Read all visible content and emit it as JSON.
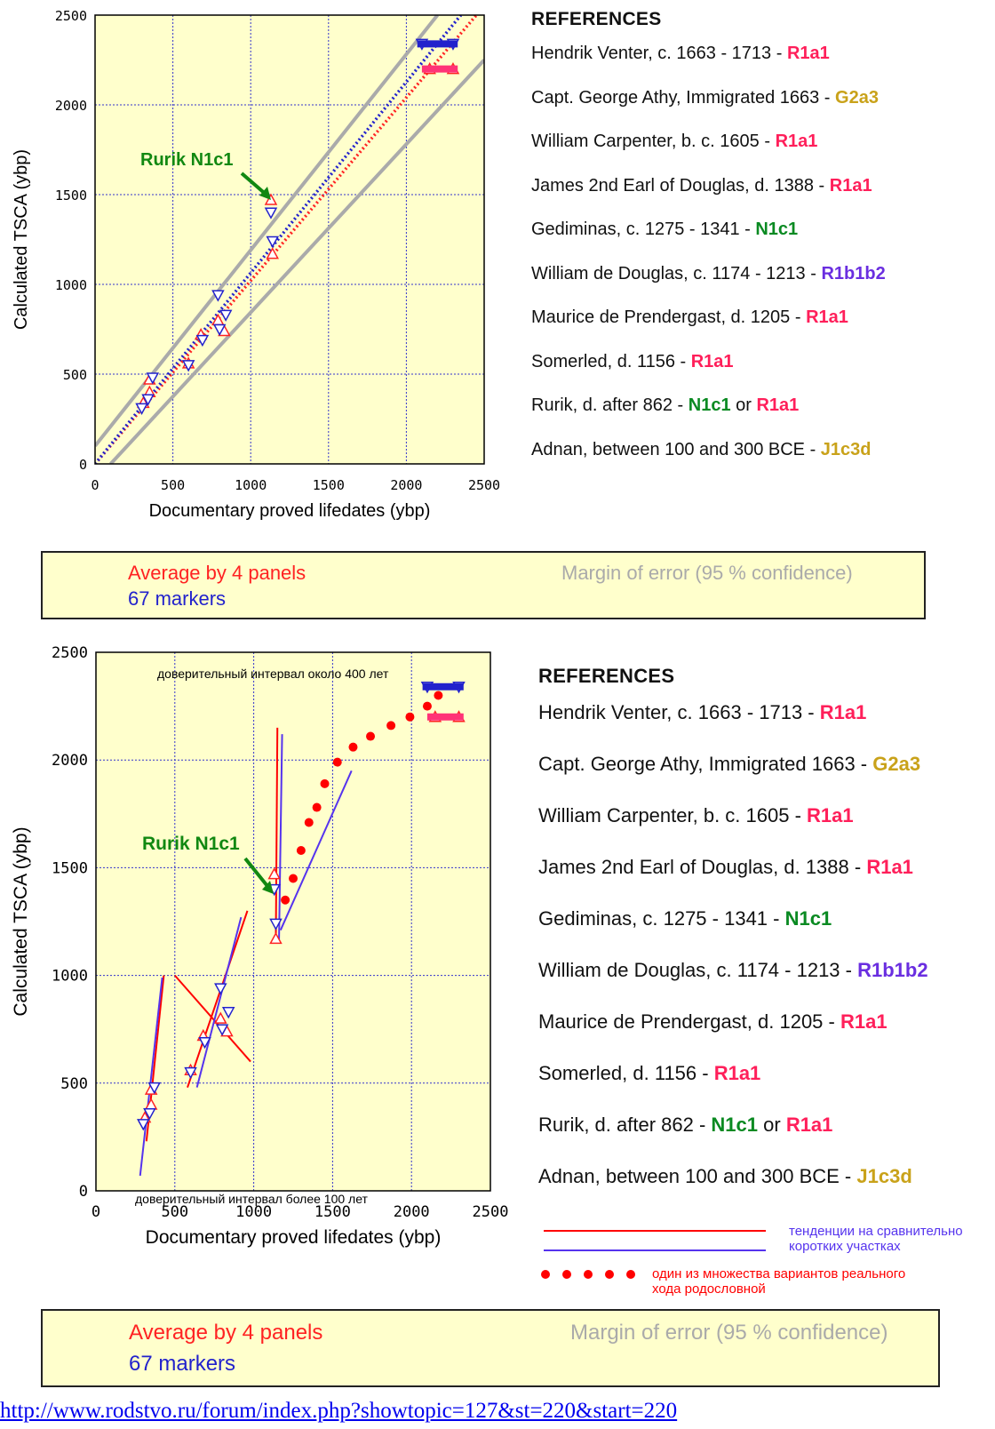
{
  "colors": {
    "plot_bg": "#ffffcc",
    "grid": "#3333cc",
    "red_series": "#ff2222",
    "blue_series": "#2222cc",
    "margin_line": "#aaaaaa",
    "pink_marker": "#ff3377",
    "green_label": "#118811",
    "note_red": "#ff0000",
    "note_blue": "#5533ee",
    "hg_red": "#ff1f5a",
    "hg_gold": "#c9a21a",
    "hg_green": "#0a8a22",
    "hg_purple": "#6a2ee0"
  },
  "references": {
    "title": "REFERENCES",
    "items": [
      {
        "text": "Hendrik Venter, c. 1663 - 1713 - ",
        "hg": "R1a1",
        "color": "hg_red"
      },
      {
        "text": "Capt. George Athy, Immigrated 1663 - ",
        "hg": "G2a3",
        "color": "hg_gold"
      },
      {
        "text": "William Carpenter, b. c. 1605 - ",
        "hg": "R1a1",
        "color": "hg_red"
      },
      {
        "text": "James 2nd Earl of Douglas, d. 1388  - ",
        "hg": "R1a1",
        "color": "hg_red"
      },
      {
        "text": "Gediminas, c. 1275 - 1341 - ",
        "hg": "N1c1",
        "color": "hg_green"
      },
      {
        "text": "William de Douglas, c. 1174 - 1213 - ",
        "hg": "R1b1b2",
        "color": "hg_purple"
      },
      {
        "text": "Maurice de Prendergast, d. 1205  - ",
        "hg": "R1a1",
        "color": "hg_red"
      },
      {
        "text": "Somerled, d. 1156  - ",
        "hg": "R1a1",
        "color": "hg_red"
      },
      {
        "text": "Rurik, d. after 862 - ",
        "hg": "N1c1",
        "color": "hg_green",
        "mid": " or ",
        "hg2": "R1a1",
        "color2": "hg_red"
      },
      {
        "text": "Adnan, between 100 and 300 BCE - ",
        "hg": "J1c3d",
        "color": "hg_gold"
      }
    ]
  },
  "legend": {
    "red_label": "Average by 4 panels",
    "blue_label": "67 markers",
    "margin_label": "Margin of error (95 % confidence)"
  },
  "annotations": {
    "rurik": "Rurik N1c1",
    "conf_top": "доверительный интервал около 400 лет",
    "conf_bottom": "доверительный интервал более 100 лет",
    "trend_note_1": "тенденции на сравнительно",
    "trend_note_2": "коротких участках",
    "dots_note_1": "один из множества вариантов реального",
    "dots_note_2": "хода родословной"
  },
  "url": "http://www.rodstvo.ru/forum/index.php?showtopic=127&st=220&start=220",
  "chart_data": [
    {
      "type": "scatter",
      "xlabel": "Documentary proved lifedates (ybp)",
      "ylabel": "Calculated TSCA (ybp)",
      "xlim": [
        0,
        2500
      ],
      "ylim": [
        0,
        2500
      ],
      "xticks": [
        "0",
        "500",
        "1000",
        "1500",
        "2000",
        "2500"
      ],
      "yticks": [
        "0",
        "500",
        "1000",
        "1500",
        "2000",
        "2500"
      ],
      "grid": true,
      "series": [
        {
          "name": "Average by 4 panels",
          "marker": "triangle-up",
          "x": [
            310,
            350,
            350,
            600,
            680,
            790,
            830,
            1130,
            1140,
            2150,
            2300
          ],
          "y": [
            340,
            470,
            400,
            560,
            720,
            800,
            740,
            1470,
            1170,
            2200,
            2200
          ]
        },
        {
          "name": "67 markers",
          "marker": "triangle-down",
          "x": [
            300,
            340,
            370,
            600,
            690,
            790,
            800,
            840,
            1130,
            1140,
            2100,
            2300
          ],
          "y": [
            310,
            360,
            480,
            550,
            690,
            940,
            750,
            830,
            1400,
            1240,
            2340,
            2340
          ]
        },
        {
          "name": "Average by 4 panels trend",
          "style": "dotted-line",
          "x": [
            0,
            2450
          ],
          "y": [
            0,
            2500
          ]
        },
        {
          "name": "67 markers trend",
          "style": "dotted-line",
          "x": [
            0,
            2350
          ],
          "y": [
            0,
            2500
          ]
        },
        {
          "name": "Margin of error (95 % confidence)",
          "style": "solid-line",
          "x": [
            0,
            2200
          ],
          "y": [
            100,
            2500
          ]
        },
        {
          "name": "Margin of error (95 % confidence)",
          "style": "solid-line",
          "x": [
            100,
            2500
          ],
          "y": [
            0,
            2250
          ]
        }
      ]
    },
    {
      "type": "scatter",
      "xlabel": "Documentary proved lifedates (ybp)",
      "ylabel": "Calculated TSCA (ybp)",
      "xlim": [
        0,
        2500
      ],
      "ylim": [
        0,
        2500
      ],
      "xticks": [
        "0",
        "500",
        "1000",
        "1500",
        "2000",
        "2500"
      ],
      "yticks": [
        "0",
        "500",
        "1000",
        "1500",
        "2000",
        "2500"
      ],
      "grid": true,
      "series": [
        {
          "name": "Average by 4 panels",
          "marker": "triangle-up",
          "x": [
            310,
            350,
            350,
            600,
            680,
            790,
            830,
            1130,
            1140,
            2150,
            2300
          ],
          "y": [
            340,
            470,
            400,
            560,
            720,
            800,
            740,
            1470,
            1170,
            2200,
            2200
          ]
        },
        {
          "name": "67 markers",
          "marker": "triangle-down",
          "x": [
            300,
            340,
            370,
            600,
            690,
            790,
            800,
            840,
            1130,
            1140,
            2100,
            2300
          ],
          "y": [
            310,
            360,
            480,
            550,
            690,
            940,
            750,
            830,
            1400,
            1240,
            2340,
            2340
          ]
        },
        {
          "name": "один из множества вариантов реального хода родословной",
          "style": "dots",
          "x": [
            1200,
            1250,
            1300,
            1350,
            1400,
            1450,
            1530,
            1630,
            1740,
            1870,
            1990,
            2100,
            2170
          ],
          "y": [
            1350,
            1450,
            1580,
            1710,
            1780,
            1890,
            1990,
            2060,
            2110,
            2160,
            2200,
            2250,
            2300
          ]
        },
        {
          "name": "тенденции на сравнительно коротких участках (red)",
          "style": "solid-line",
          "segments": [
            [
              [
                320,
                230
              ],
              [
                430,
                1000
              ]
            ],
            [
              [
                500,
                1000
              ],
              [
                980,
                600
              ]
            ],
            [
              [
                580,
                480
              ],
              [
                960,
                1300
              ]
            ],
            [
              [
                1140,
                1150
              ],
              [
                1150,
                2150
              ]
            ]
          ]
        },
        {
          "name": "тенденции на сравнительно коротких участках (blue)",
          "style": "solid-line",
          "segments": [
            [
              [
                280,
                70
              ],
              [
                420,
                990
              ]
            ],
            [
              [
                640,
                480
              ],
              [
                920,
                1270
              ]
            ],
            [
              [
                1160,
                1150
              ],
              [
                1180,
                2120
              ]
            ],
            [
              [
                1170,
                1210
              ],
              [
                1620,
                1950
              ]
            ]
          ]
        }
      ]
    }
  ]
}
